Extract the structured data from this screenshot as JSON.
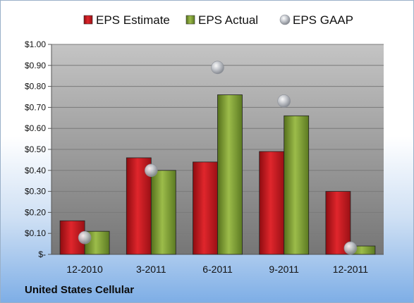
{
  "chart_data": {
    "type": "bar",
    "categories": [
      "12-2010",
      "3-2011",
      "6-2011",
      "9-2011",
      "12-2011"
    ],
    "series": [
      {
        "name": "EPS Estimate",
        "kind": "bar",
        "color": "#c0141a",
        "values": [
          0.16,
          0.46,
          0.44,
          0.49,
          0.3
        ]
      },
      {
        "name": "EPS Actual",
        "kind": "bar",
        "color": "#7a9a2e",
        "values": [
          0.11,
          0.4,
          0.76,
          0.66,
          0.04
        ]
      },
      {
        "name": "EPS GAAP",
        "kind": "marker",
        "color": "#b8bcc4",
        "values": [
          0.08,
          0.4,
          0.89,
          0.73,
          0.03
        ]
      }
    ],
    "yticks": [
      0,
      0.1,
      0.2,
      0.3,
      0.4,
      0.5,
      0.6,
      0.7,
      0.8,
      0.9,
      1.0
    ],
    "ytick_labels": [
      "$-",
      "$0.10",
      "$0.20",
      "$0.30",
      "$0.40",
      "$0.50",
      "$0.60",
      "$0.70",
      "$0.80",
      "$0.90",
      "$1.00"
    ],
    "ylim": [
      0,
      1.0
    ],
    "grid": true,
    "legend_position": "top"
  },
  "footer": {
    "company": "United States Cellular"
  }
}
